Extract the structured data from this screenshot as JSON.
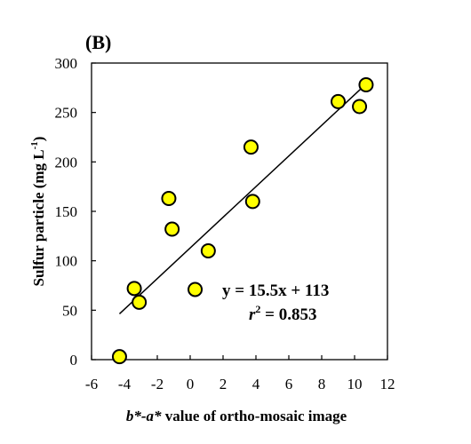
{
  "panel_label": "(B)",
  "equation": "y = 15.5x + 113",
  "r2_symbol": "r",
  "r2_sup": "2",
  "r2_value": " = 0.853",
  "colors": {
    "marker_fill": "#FFFF00",
    "marker_stroke": "#000000",
    "line": "#000000"
  },
  "chart_data": {
    "type": "scatter",
    "xlabel_parts": [
      "b*-a*",
      " value of ortho-mosaic  image"
    ],
    "ylabel_parts": [
      "Sulfur  particle  (mg L",
      "-1",
      ")"
    ],
    "xlim": [
      -6,
      12
    ],
    "ylim": [
      0,
      300
    ],
    "xticks": [
      -6,
      -4,
      -2,
      0,
      2,
      4,
      6,
      8,
      10,
      12
    ],
    "yticks": [
      0,
      50,
      100,
      150,
      200,
      250,
      300
    ],
    "points": [
      {
        "x": -4.3,
        "y": 3
      },
      {
        "x": -3.4,
        "y": 72
      },
      {
        "x": -3.1,
        "y": 58
      },
      {
        "x": -1.3,
        "y": 163
      },
      {
        "x": -1.1,
        "y": 132
      },
      {
        "x": 0.3,
        "y": 71
      },
      {
        "x": 1.1,
        "y": 110
      },
      {
        "x": 3.7,
        "y": 215
      },
      {
        "x": 3.8,
        "y": 160
      },
      {
        "x": 9.0,
        "y": 261
      },
      {
        "x": 10.3,
        "y": 256
      },
      {
        "x": 10.7,
        "y": 278
      }
    ],
    "trendline": {
      "slope": 15.5,
      "intercept": 113,
      "x_range": [
        -4.3,
        10.8
      ]
    },
    "grid": false
  }
}
